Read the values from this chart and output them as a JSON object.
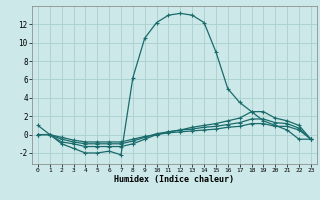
{
  "xlabel": "Humidex (Indice chaleur)",
  "bg_color": "#cce8e8",
  "grid_color": "#aad0d0",
  "line_color": "#1a6b6b",
  "xlim": [
    -0.5,
    23.5
  ],
  "ylim": [
    -3.2,
    14.0
  ],
  "xticks": [
    0,
    1,
    2,
    3,
    4,
    5,
    6,
    7,
    8,
    9,
    10,
    11,
    12,
    13,
    14,
    15,
    16,
    17,
    18,
    19,
    20,
    21,
    22,
    23
  ],
  "yticks": [
    -2,
    0,
    2,
    4,
    6,
    8,
    10,
    12
  ],
  "line1_x": [
    0,
    1,
    2,
    3,
    4,
    5,
    6,
    7,
    8,
    9,
    10,
    11,
    12,
    13,
    14,
    15,
    16,
    17,
    18,
    19,
    20,
    21,
    22,
    23
  ],
  "line1_y": [
    1.0,
    0.0,
    -1.0,
    -1.5,
    -2.0,
    -2.0,
    -1.8,
    -2.2,
    6.2,
    10.5,
    12.2,
    13.0,
    13.2,
    13.0,
    12.2,
    9.0,
    5.0,
    3.5,
    2.5,
    1.5,
    1.0,
    0.5,
    -0.5,
    -0.5
  ],
  "line2_x": [
    0,
    1,
    2,
    3,
    4,
    5,
    6,
    7,
    8,
    9,
    10,
    11,
    12,
    13,
    14,
    15,
    16,
    17,
    18,
    19,
    20,
    21,
    22,
    23
  ],
  "line2_y": [
    0.0,
    0.0,
    -0.8,
    -1.0,
    -1.3,
    -1.3,
    -1.3,
    -1.3,
    -1.0,
    -0.5,
    0.0,
    0.3,
    0.5,
    0.8,
    1.0,
    1.2,
    1.5,
    1.8,
    2.5,
    2.5,
    1.8,
    1.5,
    1.0,
    -0.5
  ],
  "line3_x": [
    0,
    1,
    2,
    3,
    4,
    5,
    6,
    7,
    8,
    9,
    10,
    11,
    12,
    13,
    14,
    15,
    16,
    17,
    18,
    19,
    20,
    21,
    22,
    23
  ],
  "line3_y": [
    0.0,
    0.0,
    -0.5,
    -0.8,
    -1.0,
    -1.0,
    -1.0,
    -1.0,
    -0.7,
    -0.3,
    0.1,
    0.3,
    0.5,
    0.6,
    0.8,
    0.9,
    1.1,
    1.3,
    1.7,
    1.7,
    1.3,
    1.2,
    0.7,
    -0.5
  ],
  "line4_x": [
    0,
    1,
    2,
    3,
    4,
    5,
    6,
    7,
    8,
    9,
    10,
    11,
    12,
    13,
    14,
    15,
    16,
    17,
    18,
    19,
    20,
    21,
    22,
    23
  ],
  "line4_y": [
    0.0,
    0.0,
    -0.3,
    -0.6,
    -0.8,
    -0.8,
    -0.8,
    -0.8,
    -0.5,
    -0.2,
    0.0,
    0.2,
    0.3,
    0.4,
    0.5,
    0.6,
    0.8,
    0.9,
    1.2,
    1.2,
    0.9,
    0.9,
    0.5,
    -0.5
  ]
}
